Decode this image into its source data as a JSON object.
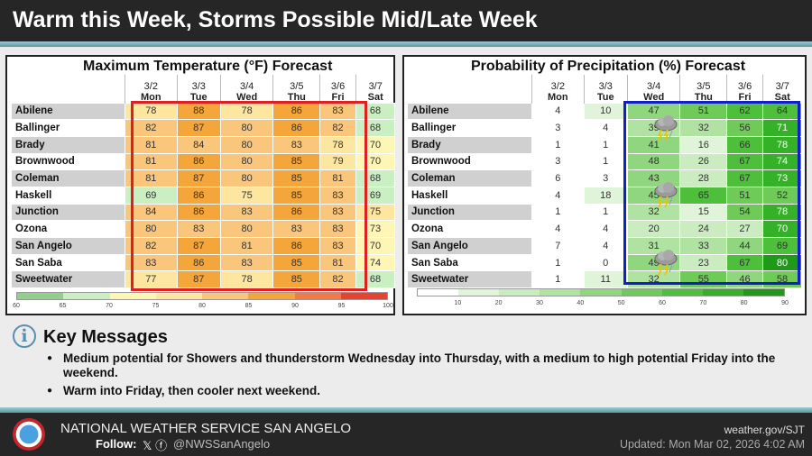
{
  "header": {
    "title": "Warm this Week, Storms Possible Mid/Late Week"
  },
  "days": [
    {
      "date": "3/2",
      "dow": "Mon"
    },
    {
      "date": "3/3",
      "dow": "Tue"
    },
    {
      "date": "3/4",
      "dow": "Wed"
    },
    {
      "date": "3/5",
      "dow": "Thu"
    },
    {
      "date": "3/6",
      "dow": "Fri"
    },
    {
      "date": "3/7",
      "dow": "Sat"
    }
  ],
  "cities": [
    "Abilene",
    "Ballinger",
    "Brady",
    "Brownwood",
    "Coleman",
    "Haskell",
    "Junction",
    "Ozona",
    "San Angelo",
    "San Saba",
    "Sweetwater"
  ],
  "temp": {
    "title": "Maximum Temperature (°F) Forecast",
    "values": [
      [
        78,
        88,
        78,
        86,
        83,
        68
      ],
      [
        82,
        87,
        80,
        86,
        82,
        68
      ],
      [
        81,
        84,
        80,
        83,
        78,
        70
      ],
      [
        81,
        86,
        80,
        85,
        79,
        70
      ],
      [
        81,
        87,
        80,
        85,
        81,
        68
      ],
      [
        69,
        86,
        75,
        85,
        83,
        69
      ],
      [
        84,
        86,
        83,
        86,
        83,
        75
      ],
      [
        80,
        83,
        80,
        83,
        83,
        73
      ],
      [
        82,
        87,
        81,
        86,
        83,
        70
      ],
      [
        83,
        86,
        83,
        85,
        81,
        74
      ],
      [
        77,
        87,
        78,
        85,
        82,
        68
      ]
    ],
    "scale_ticks": [
      "60",
      "65",
      "70",
      "75",
      "80",
      "85",
      "90",
      "95",
      "100"
    ],
    "scale_colors": [
      "#93cf8c",
      "#c9efc2",
      "#fdf6b4",
      "#fde6a0",
      "#f9c67c",
      "#f5a63a",
      "#f27a45",
      "#e8432f"
    ],
    "highlight_color": "#e02020"
  },
  "pop": {
    "title": "Probability of Precipitation (%) Forecast",
    "values": [
      [
        4,
        10,
        47,
        51,
        62,
        64
      ],
      [
        3,
        4,
        39,
        32,
        56,
        71
      ],
      [
        1,
        1,
        41,
        16,
        66,
        78
      ],
      [
        3,
        1,
        48,
        26,
        67,
        74
      ],
      [
        6,
        3,
        43,
        28,
        67,
        73
      ],
      [
        4,
        18,
        45,
        65,
        51,
        52
      ],
      [
        1,
        1,
        32,
        15,
        54,
        78
      ],
      [
        4,
        4,
        20,
        24,
        27,
        70
      ],
      [
        7,
        4,
        31,
        33,
        44,
        69
      ],
      [
        1,
        0,
        49,
        23,
        67,
        80
      ],
      [
        1,
        11,
        32,
        55,
        46,
        58
      ]
    ],
    "scale_ticks": [
      "10",
      "20",
      "30",
      "40",
      "50",
      "60",
      "70",
      "80",
      "90"
    ],
    "scale_colors": [
      "#ffffff",
      "#e0f4da",
      "#caecc0",
      "#b0e2a2",
      "#8fd67e",
      "#6ecb58",
      "#4ebf3a",
      "#35b128",
      "#1f9a18"
    ],
    "highlight_color": "#1020c8",
    "storm_icons": [
      "thunderstorm-icon",
      "thunderstorm-icon",
      "thunderstorm-icon"
    ]
  },
  "key_messages": {
    "title": "Key Messages",
    "items": [
      "Medium potential for Showers and thunderstorm Wednesday into Thursday,  with a medium to high potential Friday into the weekend.",
      "Warm into Friday, then cooler next weekend."
    ]
  },
  "footer": {
    "org": "NATIONAL WEATHER SERVICE SAN ANGELO",
    "follow": "Follow:",
    "social": "𝕏 ⓕ",
    "handle": "@NWSSanAngelo",
    "site": "weather.gov/SJT",
    "updated": "Updated: Mon Mar 02, 2026 4:02 AM"
  }
}
